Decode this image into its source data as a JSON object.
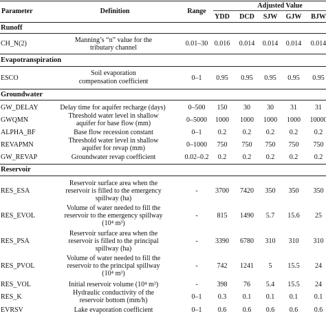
{
  "header": {
    "parameter": "Parameter",
    "definition": "Definition",
    "range": "Range",
    "adjusted": "Adjusted Value",
    "sites": [
      "YDD",
      "DCD",
      "SJW",
      "GJW",
      "BJW"
    ]
  },
  "sections": {
    "runoff": "Runoff",
    "evapo": "Evapotranspiration",
    "ground": "Groundwater",
    "reservoir": "Reservoir"
  },
  "rows": [
    {
      "param": "CH_N(2)",
      "def1": "Manning’s “n” value for the",
      "def2": "tributary channel",
      "range": "0.01–30",
      "vals": [
        "0.016",
        "0.014",
        "0.014",
        "0.014",
        "0.014"
      ]
    },
    {
      "param": "ESCO",
      "def1": "Soil evaporation",
      "def2": "compensation coefficient",
      "range": "0–1",
      "vals": [
        "0.95",
        "0.95",
        "0.95",
        "0.95",
        "0.95"
      ]
    },
    {
      "param": "GW_DELAY",
      "def1": "Delay time for aquifer recharge (days)",
      "def2": "",
      "range": "0–500",
      "vals": [
        "150",
        "30",
        "30",
        "31",
        "31"
      ]
    },
    {
      "param": "GWQMN",
      "def1": "Threshold water level in shallow",
      "def2": "aquifer for base flow (mm)",
      "range": "0–5000",
      "vals": [
        "1000",
        "1000",
        "1000",
        "1000",
        "10000"
      ]
    },
    {
      "param": "ALPHA_BF",
      "def1": "Base flow recession constant",
      "def2": "",
      "range": "0–1",
      "vals": [
        "0.2",
        "0.2",
        "0.2",
        "0.2",
        "0.2"
      ]
    },
    {
      "param": "REVAPMN",
      "def1": "Threshold water level in shallow",
      "def2": "aquifer for revap (mm)",
      "range": "0–1000",
      "vals": [
        "750",
        "750",
        "750",
        "750",
        "750"
      ]
    },
    {
      "param": "GW_REVAP",
      "def1": "Groundwater revap coefficient",
      "def2": "",
      "range": "0.02–0.2",
      "vals": [
        "0.2",
        "0.2",
        "0.2",
        "0.2",
        "0.2"
      ]
    },
    {
      "param": "RES_ESA",
      "def1": "Reservoir surface area when the",
      "def2": "reservoir is filled to the emergency",
      "def3": "spillway (ha)",
      "range": "-",
      "vals": [
        "3700",
        "7420",
        "350",
        "350",
        "350"
      ]
    },
    {
      "param": "RES_EVOL",
      "def1": "Volume of water needed to fill the",
      "def2": "reservoir to the emergency spillway",
      "def3": "(10⁴ m³)",
      "range": "-",
      "vals": [
        "815",
        "1490",
        "5.7",
        "15.6",
        "25"
      ]
    },
    {
      "param": "RES_PSA",
      "def1": "Reservoir surface area when the",
      "def2": "reservoir is filled to the principal",
      "def3": "spillway (ha)",
      "range": "-",
      "vals": [
        "3390",
        "6780",
        "310",
        "310",
        "310"
      ]
    },
    {
      "param": "RES_PVOL",
      "def1": "Volume of water needed to fill the",
      "def2": "reservoir to the principal spillway",
      "def3": "(10⁴ m³)",
      "range": "-",
      "vals": [
        "742",
        "1241",
        "5",
        "15.5",
        "24"
      ]
    },
    {
      "param": "RES_VOL",
      "def1": "Initial reservoir volume (10⁴ m³)",
      "def2": "",
      "range": "-",
      "vals": [
        "398",
        "76",
        "5.4",
        "15.5",
        "24"
      ]
    },
    {
      "param": "RES_K",
      "def1": "Hydraulic conductivity of the",
      "def2": "reservoir bottom (mm/h)",
      "range": "0–1",
      "vals": [
        "0.3",
        "0.1",
        "0.1",
        "0.1",
        "0.1"
      ]
    },
    {
      "param": "EVRSV",
      "def1": "Lake evaporation coefficient",
      "def2": "",
      "range": "0–1",
      "vals": [
        "0.6",
        "0.6",
        "0.6",
        "0.6",
        "0.6"
      ]
    }
  ]
}
